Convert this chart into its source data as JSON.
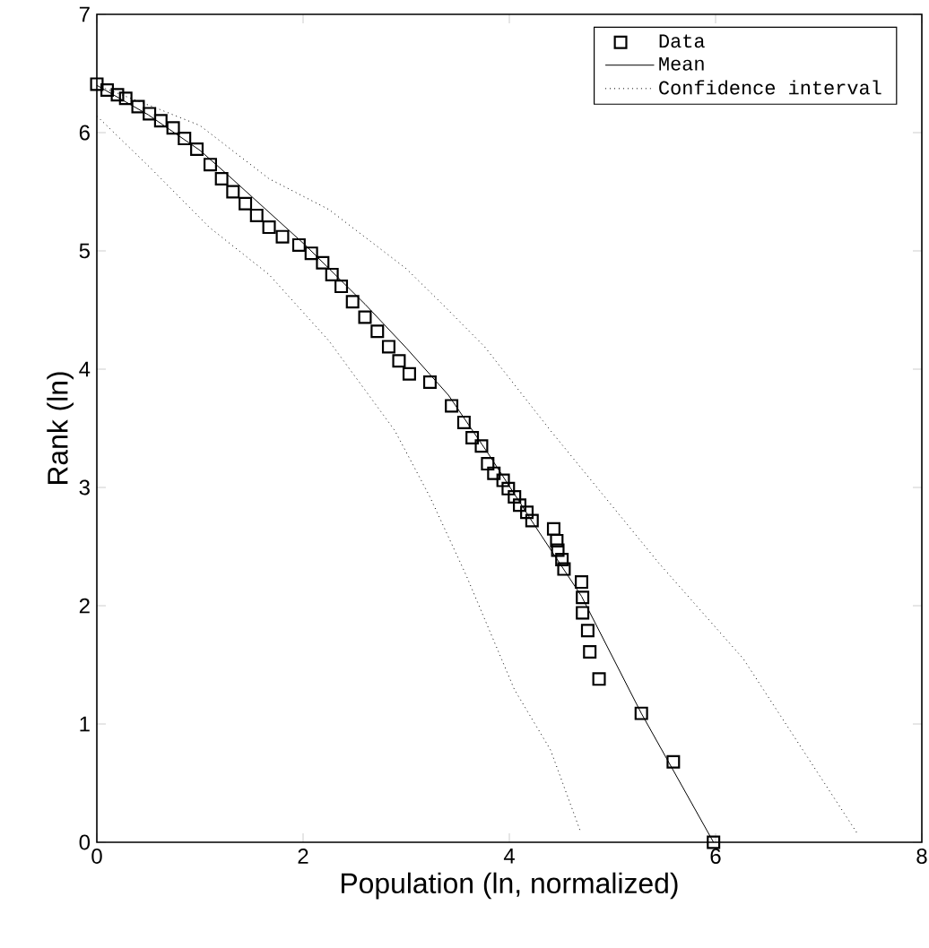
{
  "chart_data": {
    "type": "scatter",
    "xlabel": "Population (ln, normalized)",
    "ylabel": "Rank (ln)",
    "xlim": [
      0,
      8
    ],
    "ylim": [
      0,
      7
    ],
    "xticks": [
      0,
      2,
      4,
      6,
      8
    ],
    "yticks": [
      0,
      1,
      2,
      3,
      4,
      5,
      6,
      7
    ],
    "legend": "top right",
    "series": [
      {
        "name": "Data",
        "marker": "square",
        "color": "#000000",
        "x": [
          0.0,
          0.1,
          0.2,
          0.28,
          0.4,
          0.51,
          0.62,
          0.74,
          0.85,
          0.97,
          1.1,
          1.21,
          1.32,
          1.44,
          1.55,
          1.67,
          1.8,
          1.96,
          2.08,
          2.19,
          2.28,
          2.37,
          2.48,
          2.6,
          2.72,
          2.83,
          2.93,
          3.03,
          3.23,
          3.44,
          3.56,
          3.64,
          3.73,
          3.79,
          3.85,
          3.94,
          3.99,
          4.05,
          4.1,
          4.17,
          4.22,
          4.43,
          4.46,
          4.47,
          4.51,
          4.53,
          4.7,
          4.71,
          4.71,
          4.76,
          4.78,
          4.87,
          5.28,
          5.59,
          5.98
        ],
        "values": [
          6.41,
          6.36,
          6.32,
          6.29,
          6.22,
          6.16,
          6.1,
          6.04,
          5.95,
          5.86,
          5.73,
          5.61,
          5.5,
          5.4,
          5.3,
          5.2,
          5.12,
          5.05,
          4.98,
          4.9,
          4.8,
          4.7,
          4.57,
          4.44,
          4.32,
          4.19,
          4.07,
          3.96,
          3.89,
          3.69,
          3.55,
          3.42,
          3.35,
          3.2,
          3.12,
          3.06,
          2.99,
          2.92,
          2.85,
          2.79,
          2.72,
          2.65,
          2.55,
          2.47,
          2.39,
          2.31,
          2.2,
          2.07,
          1.94,
          1.79,
          1.61,
          1.38,
          1.09,
          0.68,
          0.0
        ]
      },
      {
        "name": "Mean",
        "type": "line",
        "line_style": "solid",
        "color": "#000000",
        "x": [
          0.0,
          0.5,
          1.0,
          1.26,
          2.02,
          2.6,
          3.0,
          3.41,
          3.8,
          4.26,
          4.7,
          5.28,
          5.98
        ],
        "values": [
          6.4,
          6.15,
          5.85,
          5.65,
          5.05,
          4.55,
          4.18,
          3.78,
          3.28,
          2.66,
          2.08,
          1.09,
          0.0
        ]
      },
      {
        "name": "Confidence interval",
        "type": "line",
        "line_style": "dotted",
        "color": "#000000",
        "x": [
          0.0,
          0.57,
          1.0,
          1.67,
          2.25,
          3.0,
          3.35,
          3.76,
          4.4,
          5.45,
          6.27,
          7.37
        ],
        "values": [
          6.4,
          6.21,
          6.06,
          5.61,
          5.35,
          4.85,
          4.55,
          4.19,
          3.48,
          2.36,
          1.55,
          0.08
        ]
      },
      {
        "type": "line",
        "line_style": "dotted",
        "color": "#000000",
        "x": [
          0.0,
          0.51,
          1.09,
          1.67,
          2.25,
          2.89,
          3.23,
          3.58,
          4.05,
          4.4,
          4.69
        ],
        "values": [
          6.14,
          5.71,
          5.2,
          4.8,
          4.24,
          3.48,
          2.92,
          2.26,
          1.29,
          0.78,
          0.09
        ]
      }
    ]
  }
}
